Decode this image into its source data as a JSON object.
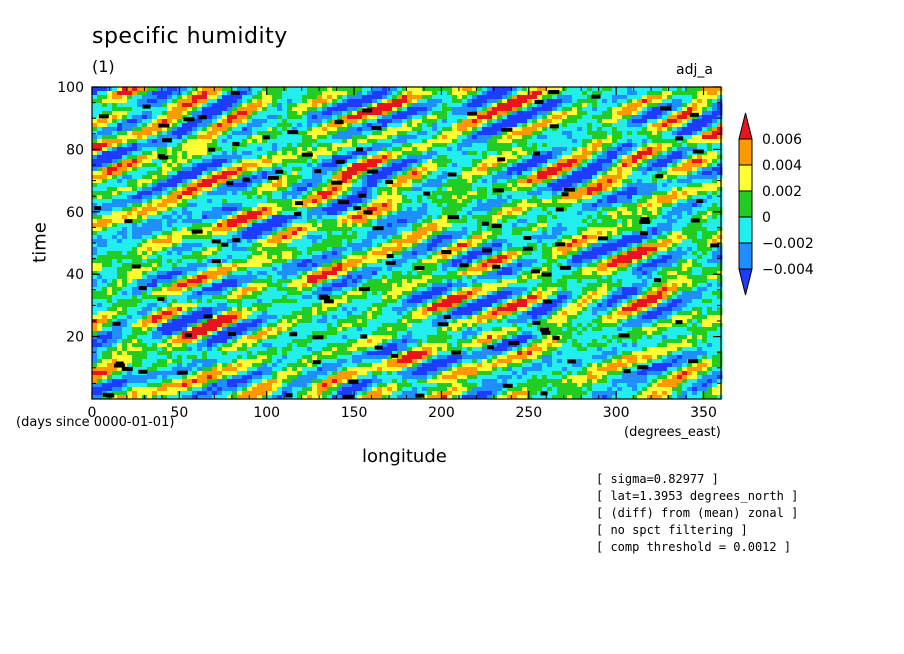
{
  "chart_data": {
    "type": "heatmap",
    "title": "specific humidity",
    "subtitle": "(1)",
    "tag": "adj_a",
    "xlabel": "longitude",
    "xunits": "(degrees_east)",
    "ylabel": "time",
    "yunits": "(days since 0000-01-01)",
    "xlim": [
      0,
      360
    ],
    "ylim": [
      0,
      100
    ],
    "xticks": [
      0,
      50,
      100,
      150,
      200,
      250,
      300,
      350
    ],
    "yticks": [
      20,
      40,
      60,
      80,
      100
    ],
    "colorbar": {
      "levels": [
        "0.006",
        "0.004",
        "0.002",
        "0",
        "-0.002",
        "-0.004"
      ],
      "colors": [
        "#e8141e",
        "#ff9900",
        "#ffff33",
        "#22cc22",
        "#22eeee",
        "#1f8fff",
        "#1e3cff"
      ],
      "extend": "both"
    },
    "notes": [
      "[ sigma=0.82977 ]",
      "[ lat=1.3953 degrees_north ]",
      "[ (diff) from (mean) zonal ]",
      "[ no spct filtering ]",
      "[ comp threshold = 0.0012 ]"
    ],
    "markers_color": "#000000"
  }
}
